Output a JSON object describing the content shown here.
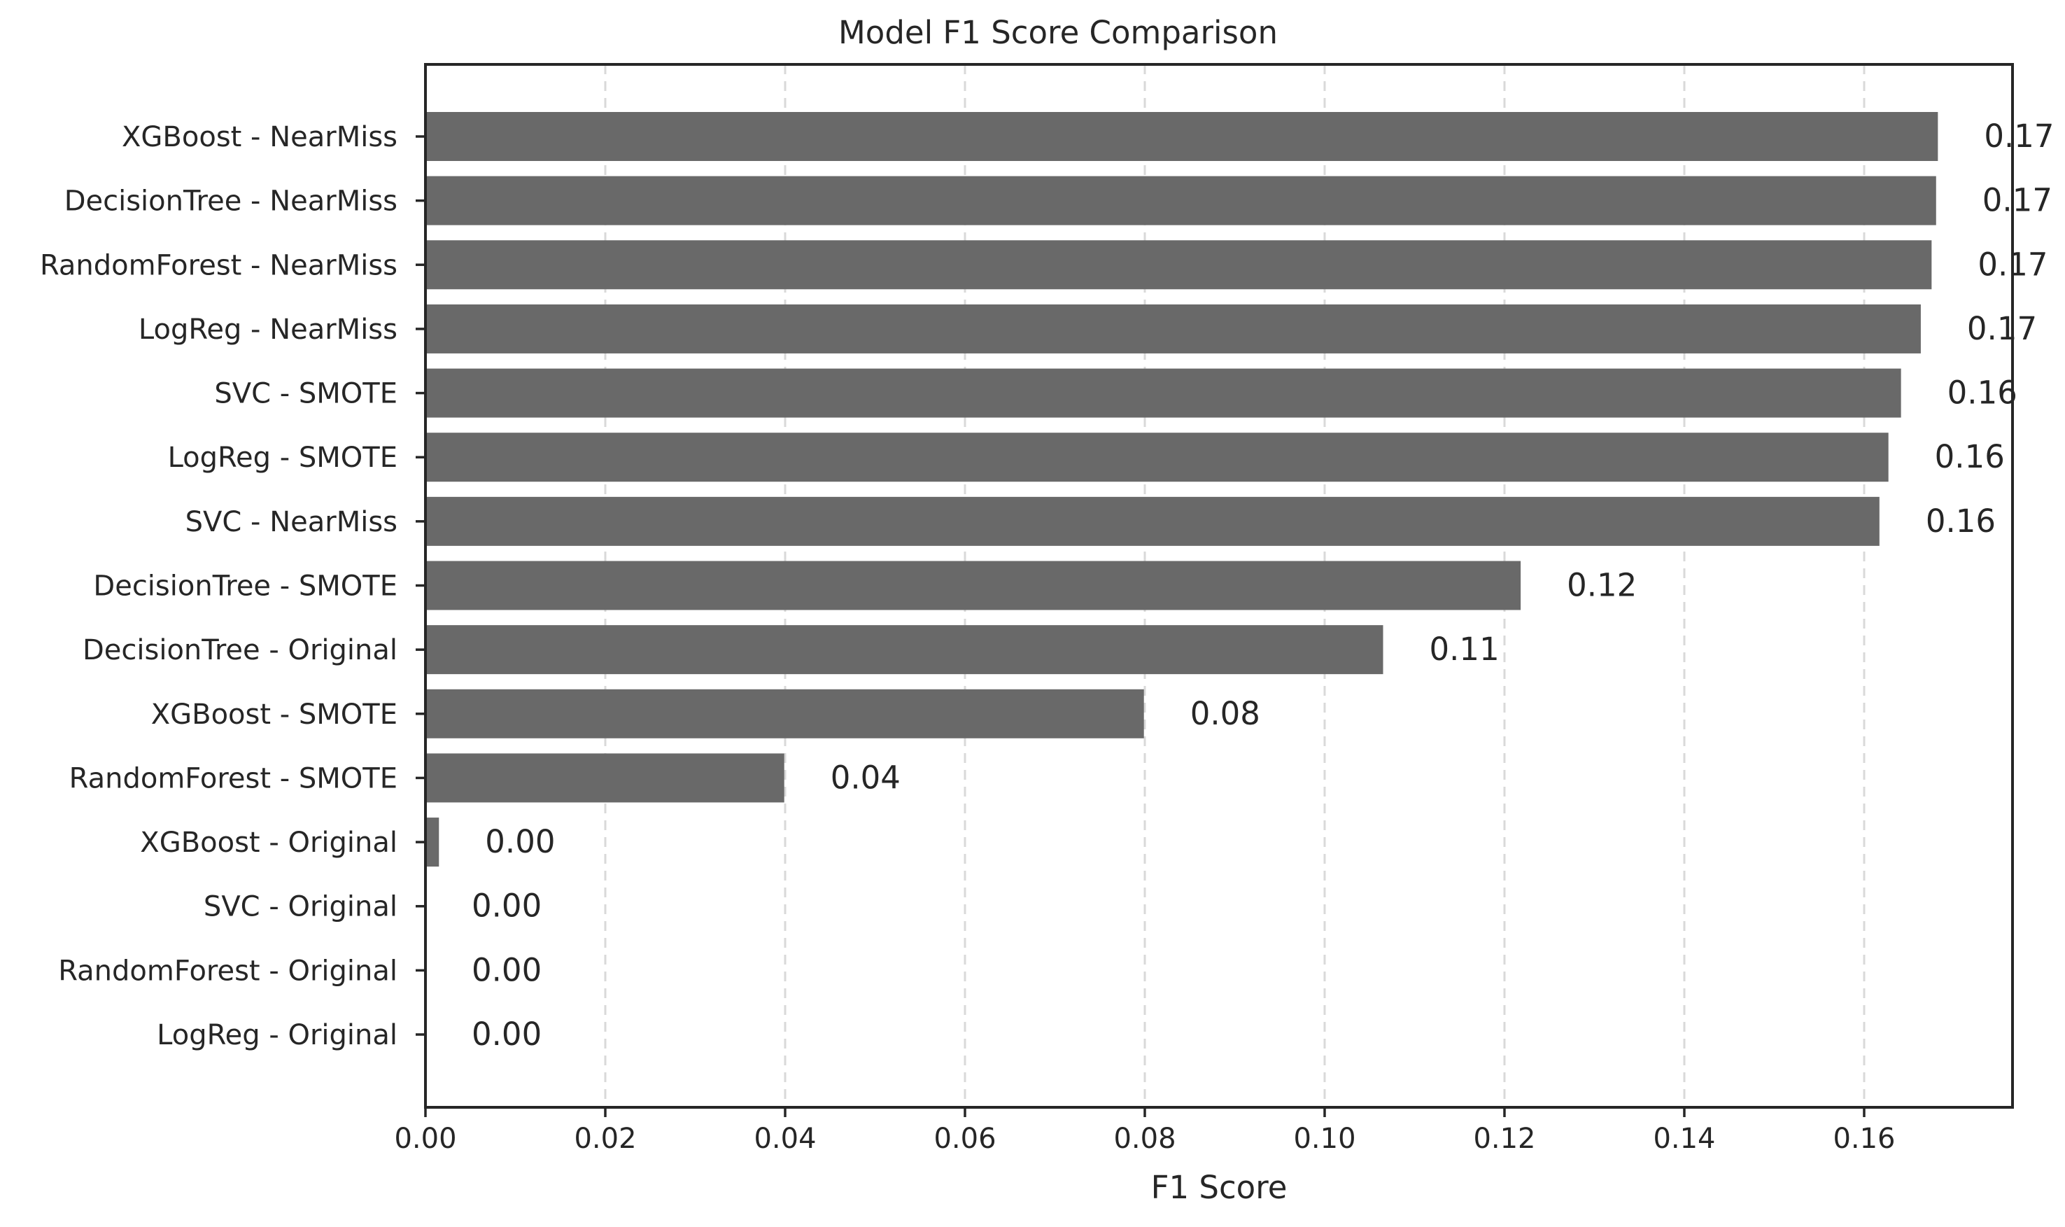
{
  "chart_data": {
    "type": "bar",
    "orientation": "horizontal",
    "title": "Model F1 Score Comparison",
    "xlabel": "F1 Score",
    "ylabel": "",
    "xlim": [
      0,
      0.1765
    ],
    "xticks": [
      0.0,
      0.02,
      0.04,
      0.06,
      0.08,
      0.1,
      0.12,
      0.14,
      0.16
    ],
    "xtick_labels": [
      "0.00",
      "0.02",
      "0.04",
      "0.06",
      "0.08",
      "0.10",
      "0.12",
      "0.14",
      "0.16"
    ],
    "grid": {
      "x": true,
      "y": false,
      "style": "dashed"
    },
    "bar_color": "#696969",
    "categories": [
      "XGBoost - NearMiss",
      "DecisionTree - NearMiss",
      "RandomForest - NearMiss",
      "LogReg - NearMiss",
      "SVC - SMOTE",
      "LogReg - SMOTE",
      "SVC - NearMiss",
      "DecisionTree - SMOTE",
      "DecisionTree - Original",
      "XGBoost - SMOTE",
      "RandomForest - SMOTE",
      "XGBoost - Original",
      "SVC - Original",
      "RandomForest - Original",
      "LogReg - Original"
    ],
    "values": [
      0.1682,
      0.168,
      0.1675,
      0.1663,
      0.1641,
      0.1627,
      0.1617,
      0.1218,
      0.1065,
      0.0799,
      0.0399,
      0.0015,
      0.0,
      0.0,
      0.0
    ],
    "data_labels": [
      "0.17",
      "0.17",
      "0.17",
      "0.17",
      "0.16",
      "0.16",
      "0.16",
      "0.12",
      "0.11",
      "0.08",
      "0.04",
      "0.00",
      "0.00",
      "0.00",
      "0.00"
    ]
  }
}
